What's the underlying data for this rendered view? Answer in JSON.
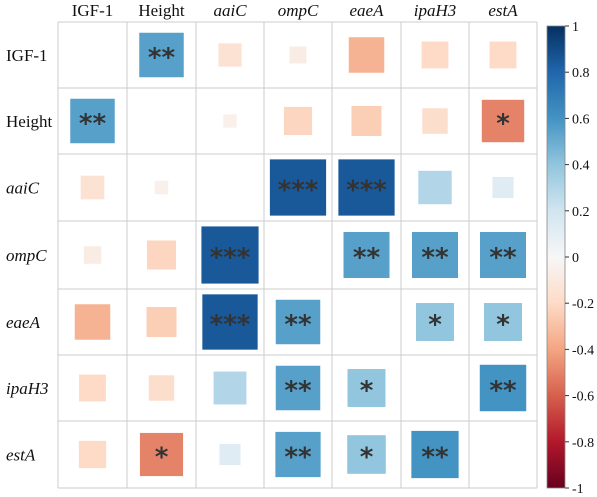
{
  "chart_data": {
    "type": "heatmap",
    "subtype": "correlation-matrix",
    "variables": [
      {
        "label": "IGF-1",
        "italic": false
      },
      {
        "label": "Height",
        "italic": false
      },
      {
        "label": "aaiC",
        "italic": true
      },
      {
        "label": "ompC",
        "italic": true
      },
      {
        "label": "eaeA",
        "italic": true
      },
      {
        "label": "ipaH3",
        "italic": true
      },
      {
        "label": "estA",
        "italic": true
      }
    ],
    "matrix": [
      [
        null,
        0.55,
        -0.15,
        -0.08,
        -0.35,
        -0.2,
        -0.2
      ],
      [
        0.55,
        null,
        -0.05,
        -0.22,
        -0.25,
        -0.18,
        -0.5
      ],
      [
        -0.15,
        -0.05,
        null,
        0.85,
        0.85,
        0.3,
        0.12
      ],
      [
        -0.08,
        -0.22,
        0.85,
        null,
        0.55,
        0.55,
        0.55
      ],
      [
        -0.35,
        -0.25,
        0.85,
        0.55,
        null,
        0.4,
        0.4
      ],
      [
        -0.2,
        -0.18,
        0.3,
        0.55,
        0.4,
        null,
        0.6
      ],
      [
        -0.2,
        -0.5,
        0.12,
        0.55,
        0.4,
        0.6,
        null
      ]
    ],
    "significance": [
      [
        "",
        "**",
        "",
        "",
        "",
        "",
        ""
      ],
      [
        "**",
        "",
        "",
        "",
        "",
        "",
        "*"
      ],
      [
        "",
        "",
        "",
        "***",
        "***",
        "",
        ""
      ],
      [
        "",
        "",
        "***",
        "",
        "**",
        "**",
        "**"
      ],
      [
        "",
        "",
        "***",
        "**",
        "",
        "*",
        "*"
      ],
      [
        "",
        "",
        "",
        "**",
        "*",
        "",
        "**"
      ],
      [
        "",
        "*",
        "",
        "**",
        "*",
        "**",
        ""
      ]
    ],
    "colorbar": {
      "range": [
        -1,
        1
      ],
      "ticks": [
        "1",
        "0.8",
        "0.6",
        "0.4",
        "0.2",
        "0",
        "-0.2",
        "-0.4",
        "-0.6",
        "-0.8",
        "-1"
      ],
      "low_color": "#67001F",
      "mid_color": "#F7F7F7",
      "high_color": "#053061"
    },
    "grid": true,
    "legend_position": "right"
  }
}
